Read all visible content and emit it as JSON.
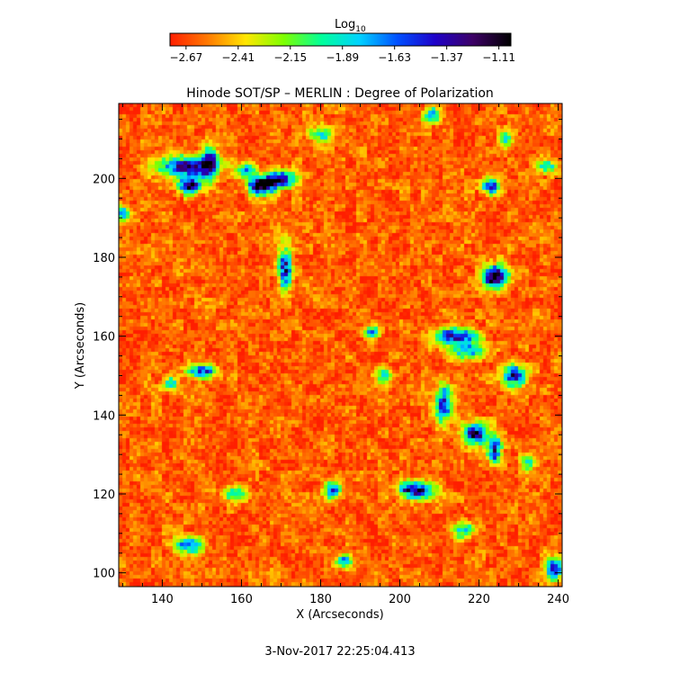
{
  "chart_data": {
    "type": "heatmap",
    "title": "Hinode SOT/SP – MERLIN : Degree of Polarization",
    "xlabel": "X (Arcseconds)",
    "ylabel": "Y (Arcseconds)",
    "xlim": [
      129,
      241
    ],
    "ylim": [
      96.5,
      219
    ],
    "x_ticks": [
      140,
      160,
      180,
      200,
      220,
      240
    ],
    "y_ticks": [
      100,
      120,
      140,
      160,
      180,
      200
    ],
    "colorbar": {
      "label": "Log",
      "label_subscript": "10",
      "range": [
        -2.75,
        -1.05
      ],
      "tick_values": [
        -2.67,
        -2.41,
        -2.15,
        -1.89,
        -1.63,
        -1.37,
        -1.11
      ],
      "tick_labels": [
        "−2.67",
        "−2.41",
        "−2.15",
        "−1.89",
        "−1.63",
        "−1.37",
        "−1.11"
      ],
      "colors": [
        "#ff1e00",
        "#ff7a00",
        "#ffe600",
        "#7dff00",
        "#00ff9a",
        "#00d2ff",
        "#0050ff",
        "#1e00c8",
        "#3c0064",
        "#000000"
      ]
    },
    "background_level": -2.62,
    "background_noise": 0.22,
    "features": [
      {
        "x": 146,
        "y": 203,
        "amp": 1.25,
        "sx": 5,
        "sy": 1.8
      },
      {
        "x": 147,
        "y": 198,
        "amp": 1.4,
        "sx": 2.0,
        "sy": 1.5
      },
      {
        "x": 152,
        "y": 204,
        "amp": 1.1,
        "sx": 1.5,
        "sy": 3
      },
      {
        "x": 165,
        "y": 198,
        "amp": 1.6,
        "sx": 2.5,
        "sy": 1.5
      },
      {
        "x": 170,
        "y": 200,
        "amp": 1.2,
        "sx": 3,
        "sy": 1.5
      },
      {
        "x": 161,
        "y": 202,
        "amp": 1.0,
        "sx": 1.5,
        "sy": 1.2
      },
      {
        "x": 223,
        "y": 198,
        "amp": 1.15,
        "sx": 1.5,
        "sy": 1.5
      },
      {
        "x": 130,
        "y": 191,
        "amp": 0.9,
        "sx": 1.2,
        "sy": 1.2
      },
      {
        "x": 171,
        "y": 177,
        "amp": 1.2,
        "sx": 1.2,
        "sy": 4
      },
      {
        "x": 224,
        "y": 175,
        "amp": 1.5,
        "sx": 2.2,
        "sy": 2.0
      },
      {
        "x": 214,
        "y": 160,
        "amp": 1.2,
        "sx": 4,
        "sy": 1.5
      },
      {
        "x": 217,
        "y": 156,
        "amp": 0.9,
        "sx": 3,
        "sy": 1.5
      },
      {
        "x": 229,
        "y": 150,
        "amp": 1.35,
        "sx": 2.0,
        "sy": 2.0
      },
      {
        "x": 211,
        "y": 143,
        "amp": 1.2,
        "sx": 1.5,
        "sy": 3.5
      },
      {
        "x": 219,
        "y": 135,
        "amp": 1.45,
        "sx": 2.0,
        "sy": 2.0
      },
      {
        "x": 224,
        "y": 131,
        "amp": 1.2,
        "sx": 1.2,
        "sy": 2.5
      },
      {
        "x": 204,
        "y": 121,
        "amp": 1.45,
        "sx": 3.0,
        "sy": 1.5
      },
      {
        "x": 183,
        "y": 121,
        "amp": 1.1,
        "sx": 1.5,
        "sy": 1.5
      },
      {
        "x": 150,
        "y": 151,
        "amp": 1.1,
        "sx": 2.5,
        "sy": 1.2
      },
      {
        "x": 142,
        "y": 148,
        "amp": 0.85,
        "sx": 1.2,
        "sy": 1.2
      },
      {
        "x": 193,
        "y": 161,
        "amp": 1.0,
        "sx": 1.5,
        "sy": 1.0
      },
      {
        "x": 196,
        "y": 150,
        "amp": 0.8,
        "sx": 1.5,
        "sy": 1.5
      },
      {
        "x": 147,
        "y": 107,
        "amp": 1.05,
        "sx": 2.5,
        "sy": 1.5
      },
      {
        "x": 186,
        "y": 103,
        "amp": 0.9,
        "sx": 1.5,
        "sy": 1.2
      },
      {
        "x": 239,
        "y": 101,
        "amp": 1.2,
        "sx": 1.5,
        "sy": 2.0
      },
      {
        "x": 232,
        "y": 128,
        "amp": 0.9,
        "sx": 1.2,
        "sy": 1.5
      },
      {
        "x": 237,
        "y": 203,
        "amp": 1.0,
        "sx": 1.5,
        "sy": 1.2
      },
      {
        "x": 180,
        "y": 211,
        "amp": 0.8,
        "sx": 2.0,
        "sy": 1.5
      },
      {
        "x": 208,
        "y": 216,
        "amp": 0.85,
        "sx": 1.5,
        "sy": 1.5
      },
      {
        "x": 158,
        "y": 120,
        "amp": 0.8,
        "sx": 2.0,
        "sy": 1.2
      },
      {
        "x": 227,
        "y": 210,
        "amp": 0.8,
        "sx": 1.2,
        "sy": 1.2
      },
      {
        "x": 216,
        "y": 111,
        "amp": 0.8,
        "sx": 2.0,
        "sy": 1.5
      }
    ],
    "timestamp": "3-Nov-2017 22:25:04.413"
  }
}
